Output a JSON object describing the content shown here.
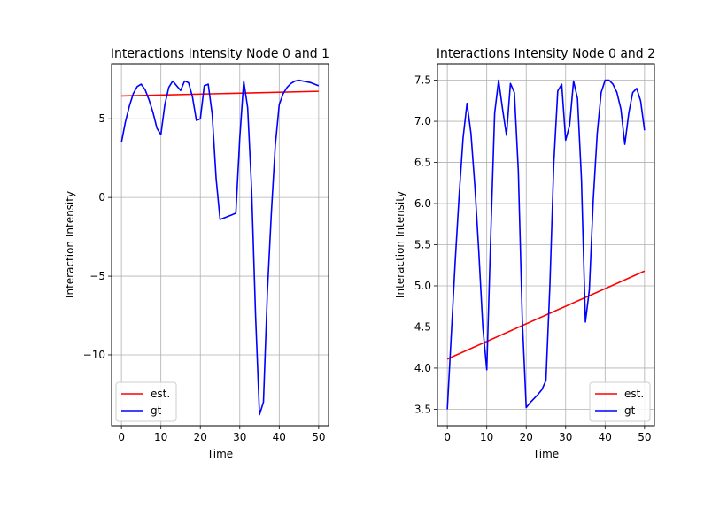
{
  "chart_data": [
    {
      "type": "line",
      "title": "Interactions Intensity Node 0 and 1",
      "xlabel": "Time",
      "ylabel": "Interaction Intensity",
      "xlim": [
        -2.5,
        52.5
      ],
      "ylim": [
        -14.5,
        8.5
      ],
      "xticks": [
        0,
        10,
        20,
        30,
        40,
        50
      ],
      "xtick_labels": [
        "0",
        "10",
        "20",
        "30",
        "40",
        "50"
      ],
      "yticks": [
        5,
        0,
        -5,
        -10
      ],
      "ytick_labels": [
        "5",
        "0",
        "−5",
        "−10"
      ],
      "grid": true,
      "legend_position": "lower-left",
      "series": [
        {
          "name": "est.",
          "color": "#ff0000",
          "x": [
            0,
            50
          ],
          "y": [
            6.45,
            6.75
          ]
        },
        {
          "name": "gt",
          "color": "#0000ff",
          "x": [
            0,
            1,
            2,
            3,
            4,
            5,
            6,
            7,
            8,
            9,
            10,
            11,
            12,
            13,
            14,
            15,
            16,
            17,
            18,
            19,
            20,
            21,
            22,
            23,
            24,
            25,
            26,
            27,
            28,
            29,
            30,
            31,
            32,
            33,
            34,
            35,
            36,
            37,
            38,
            39,
            40,
            41,
            42,
            43,
            44,
            45,
            46,
            47,
            48,
            49,
            50
          ],
          "y": [
            3.5,
            4.8,
            5.8,
            6.6,
            7.05,
            7.2,
            6.85,
            6.2,
            5.4,
            4.4,
            4.0,
            5.9,
            7.0,
            7.4,
            7.1,
            6.8,
            7.4,
            7.3,
            6.4,
            4.9,
            5.0,
            7.1,
            7.2,
            5.3,
            1.2,
            -1.4,
            -1.3,
            -1.2,
            -1.1,
            -1.0,
            3.8,
            7.4,
            5.7,
            0.5,
            -7.5,
            -13.8,
            -13.0,
            -6.0,
            -1.0,
            3.3,
            5.9,
            6.6,
            7.0,
            7.25,
            7.4,
            7.45,
            7.4,
            7.35,
            7.3,
            7.2,
            7.1
          ]
        }
      ]
    },
    {
      "type": "line",
      "title": "Interactions Intensity Node 0 and 2",
      "xlabel": "Time",
      "ylabel": "Interaction Intensity",
      "xlim": [
        -2.5,
        52.5
      ],
      "ylim": [
        3.3,
        7.7
      ],
      "xticks": [
        0,
        10,
        20,
        30,
        40,
        50
      ],
      "xtick_labels": [
        "0",
        "10",
        "20",
        "30",
        "40",
        "50"
      ],
      "yticks": [
        3.5,
        4.0,
        4.5,
        5.0,
        5.5,
        6.0,
        6.5,
        7.0,
        7.5
      ],
      "ytick_labels": [
        "3.5",
        "4.0",
        "4.5",
        "5.0",
        "5.5",
        "6.0",
        "6.5",
        "7.0",
        "7.5"
      ],
      "grid": true,
      "legend_position": "lower-right",
      "series": [
        {
          "name": "est.",
          "color": "#ff0000",
          "x": [
            0,
            50
          ],
          "y": [
            4.11,
            5.18
          ]
        },
        {
          "name": "gt",
          "color": "#0000ff",
          "x": [
            0,
            1,
            2,
            3,
            4,
            5,
            6,
            7,
            8,
            9,
            10,
            11,
            12,
            13,
            14,
            15,
            16,
            17,
            18,
            19,
            20,
            21,
            22,
            23,
            24,
            25,
            26,
            27,
            28,
            29,
            30,
            31,
            32,
            33,
            34,
            35,
            36,
            37,
            38,
            39,
            40,
            41,
            42,
            43,
            44,
            45,
            46,
            47,
            48,
            49,
            50
          ],
          "y": [
            3.5,
            4.4,
            5.3,
            6.1,
            6.8,
            7.22,
            6.85,
            6.2,
            5.4,
            4.5,
            3.98,
            5.6,
            7.1,
            7.5,
            7.15,
            6.83,
            7.46,
            7.35,
            6.4,
            4.6,
            3.52,
            3.58,
            3.63,
            3.68,
            3.74,
            3.85,
            5.0,
            6.5,
            7.37,
            7.45,
            6.77,
            6.95,
            7.49,
            7.28,
            6.3,
            4.56,
            4.95,
            6.05,
            6.85,
            7.35,
            7.5,
            7.5,
            7.45,
            7.35,
            7.15,
            6.72,
            7.1,
            7.35,
            7.4,
            7.25,
            6.89
          ]
        }
      ]
    }
  ]
}
